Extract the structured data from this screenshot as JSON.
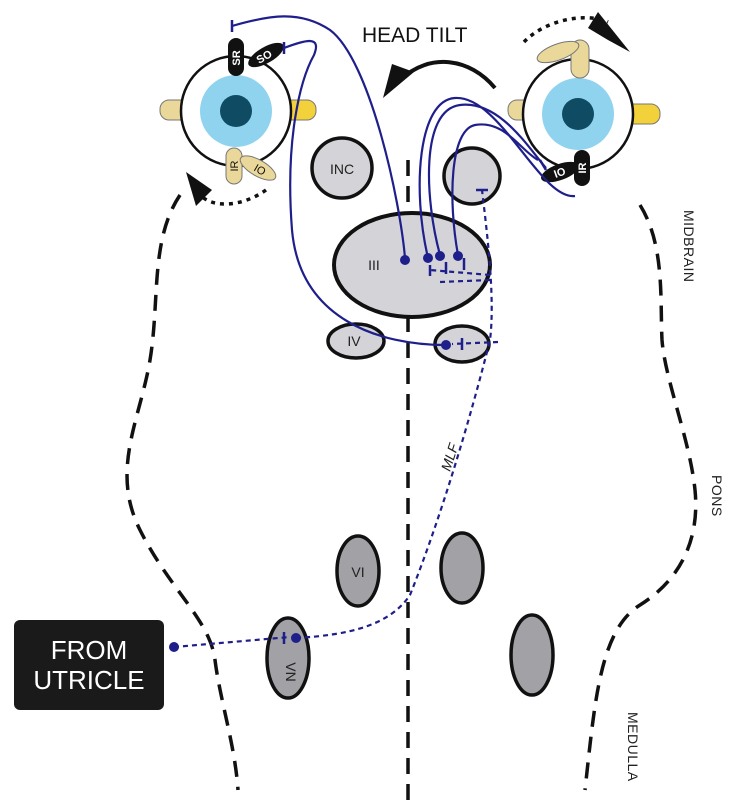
{
  "title": "HEAD TILT",
  "utricle_box": {
    "line1": "FROM",
    "line2": "UTRICLE"
  },
  "regions": {
    "midbrain": "MIDBRAIN",
    "pons": "PONS",
    "medulla": "MEDULLA"
  },
  "tract_label": "MLF",
  "nuclei": {
    "inc": "INC",
    "oculomotor": "III",
    "trochlear": "IV",
    "abducens": "VI",
    "vestibular": "VN"
  },
  "left_eye_muscles": {
    "superior_rectus": "SR",
    "superior_oblique": "SO",
    "inferior_rectus": "IR",
    "inferior_oblique": "IO"
  },
  "right_eye_muscles": {
    "inferior_oblique": "IO",
    "inferior_rectus": "IR"
  },
  "colors": {
    "pathway": "#1f1f8c",
    "nucleus_light": "#d4d4d8",
    "nucleus_dark": "#a1a1a6",
    "iris": "#8fd3ee",
    "pupil": "#0f4b63",
    "muscle_tan": "#ead79a",
    "muscle_yellow": "#f2d13a",
    "muscle_black": "#111111"
  }
}
